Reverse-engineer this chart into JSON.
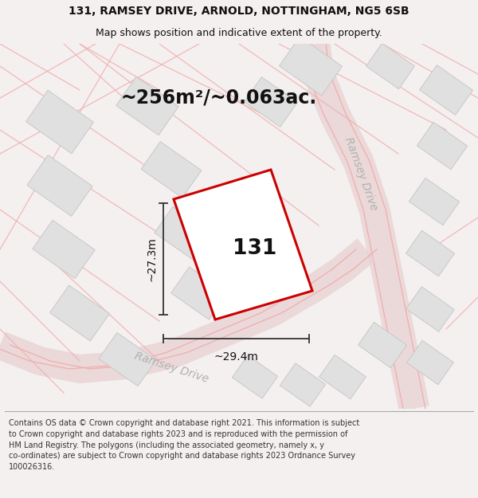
{
  "title_line1": "131, RAMSEY DRIVE, ARNOLD, NOTTINGHAM, NG5 6SB",
  "title_line2": "Map shows position and indicative extent of the property.",
  "area_text": "~256m²/~0.063ac.",
  "label_131": "131",
  "dim_vertical": "~27.3m",
  "dim_horizontal": "~29.4m",
  "road_label1": "Ramsey Drive",
  "road_label2": "Ramsey Drive",
  "footer_lines": [
    "Contains OS data © Crown copyright and database right 2021. This information is subject",
    "to Crown copyright and database rights 2023 and is reproduced with the permission of",
    "HM Land Registry. The polygons (including the associated geometry, namely x, y",
    "co-ordinates) are subject to Crown copyright and database rights 2023 Ordnance Survey",
    "100026316."
  ],
  "bg_color": "#f5f0f0",
  "map_bg": "#f5eded",
  "plot_fill": "#ffffff",
  "plot_edge": "#cc0000",
  "road_color": "#f0b0b0",
  "road_fill": "#e8d0d0",
  "building_fill": "#e0e0e0",
  "building_edge": "#c8c8c8",
  "dim_line_color": "#333333",
  "text_color": "#111111",
  "road_text_color": "#b0b0b0",
  "title_fontsize": 10,
  "subtitle_fontsize": 9,
  "area_fontsize": 17,
  "label_fontsize": 19,
  "dim_fontsize": 10,
  "road_fontsize": 10,
  "footer_fontsize": 7
}
